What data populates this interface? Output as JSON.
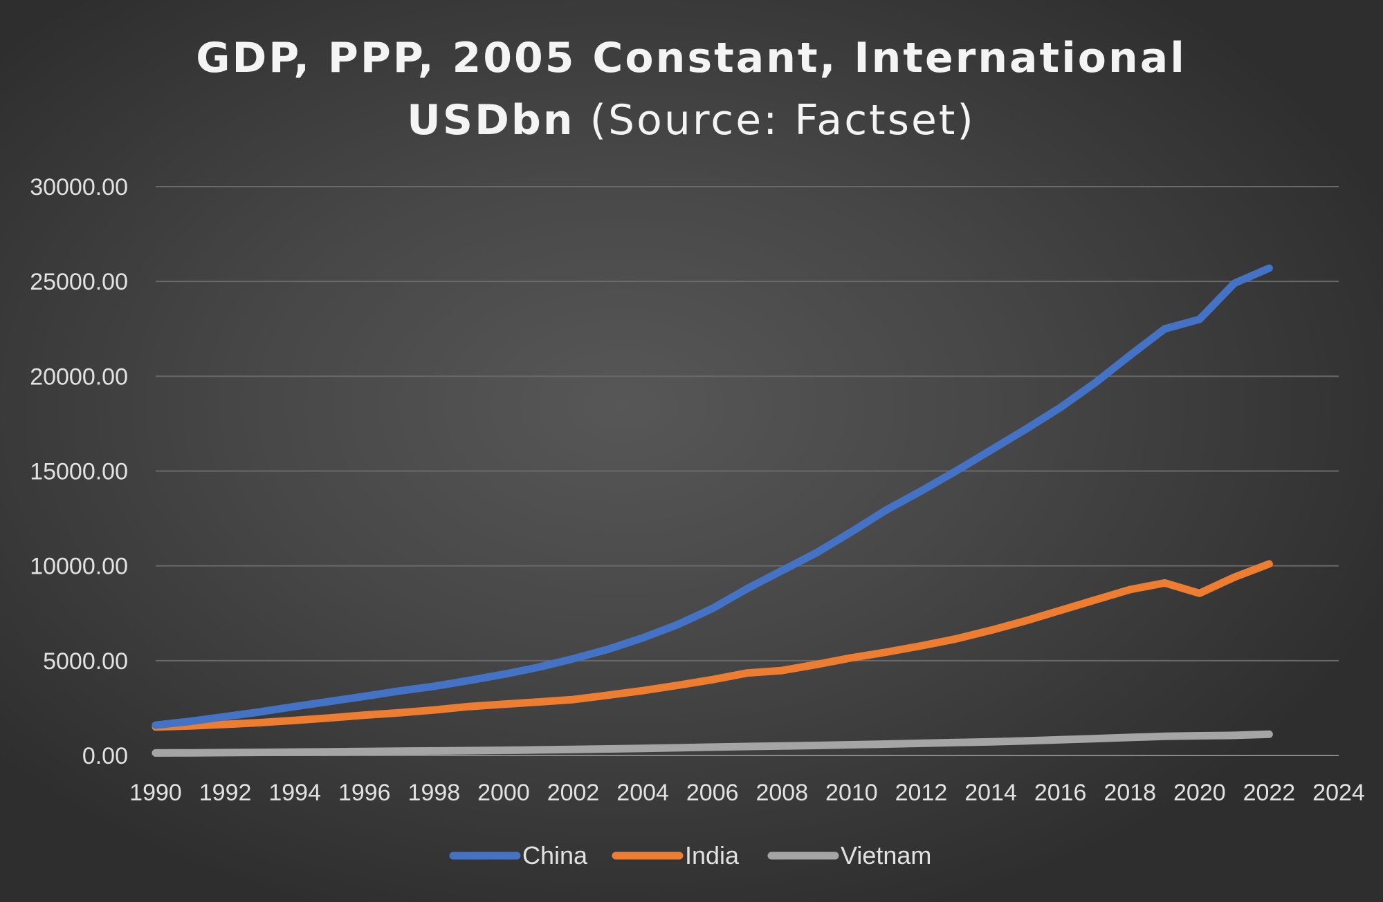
{
  "chart_data": {
    "type": "line",
    "title": "GDP, PPP, 2005 Constant, International",
    "title_line2_bold": "USDbn",
    "title_line2_normal": " (Source: Factset)",
    "xlabel": "",
    "ylabel": "",
    "xlim": [
      1990,
      2024
    ],
    "ylim": [
      0,
      30000
    ],
    "yticks": [
      0,
      5000,
      10000,
      15000,
      20000,
      25000,
      30000
    ],
    "ytick_labels": [
      "0.00",
      "5000.00",
      "10000.00",
      "15000.00",
      "20000.00",
      "25000.00",
      "30000.00"
    ],
    "xticks": [
      1990,
      1992,
      1994,
      1996,
      1998,
      2000,
      2002,
      2004,
      2006,
      2008,
      2010,
      2012,
      2014,
      2016,
      2018,
      2020,
      2022,
      2024
    ],
    "xtick_labels": [
      "1990",
      "1992",
      "1994",
      "1996",
      "1998",
      "2000",
      "2002",
      "2004",
      "2006",
      "2008",
      "2010",
      "2012",
      "2014",
      "2016",
      "2018",
      "2020",
      "2022",
      "2024"
    ],
    "grid": true,
    "legend_position": "bottom",
    "x": [
      1990,
      1991,
      1992,
      1993,
      1994,
      1995,
      1996,
      1997,
      1998,
      1999,
      2000,
      2001,
      2002,
      2003,
      2004,
      2005,
      2006,
      2007,
      2008,
      2009,
      2010,
      2011,
      2012,
      2013,
      2014,
      2015,
      2016,
      2017,
      2018,
      2019,
      2020,
      2021,
      2022
    ],
    "series": [
      {
        "name": "China",
        "color": "#4472c4",
        "values": [
          1600,
          1800,
          2050,
          2300,
          2580,
          2850,
          3120,
          3400,
          3650,
          3950,
          4280,
          4650,
          5100,
          5600,
          6200,
          6900,
          7750,
          8800,
          9750,
          10700,
          11800,
          12950,
          13950,
          15000,
          16100,
          17200,
          18350,
          19650,
          21100,
          22500,
          23000,
          24900,
          25700
        ]
      },
      {
        "name": "India",
        "color": "#ed7d31",
        "values": [
          1500,
          1560,
          1640,
          1730,
          1850,
          1980,
          2130,
          2250,
          2400,
          2580,
          2700,
          2820,
          2950,
          3180,
          3420,
          3700,
          4000,
          4350,
          4480,
          4800,
          5150,
          5450,
          5780,
          6150,
          6600,
          7100,
          7650,
          8200,
          8750,
          9100,
          8550,
          9400,
          10100
        ]
      },
      {
        "name": "Vietnam",
        "color": "#a5a5a5",
        "values": [
          130,
          140,
          150,
          165,
          180,
          195,
          210,
          225,
          240,
          255,
          275,
          295,
          320,
          345,
          375,
          405,
          440,
          475,
          500,
          530,
          565,
          600,
          640,
          680,
          720,
          770,
          830,
          890,
          950,
          1010,
          1040,
          1060,
          1120
        ]
      }
    ]
  }
}
